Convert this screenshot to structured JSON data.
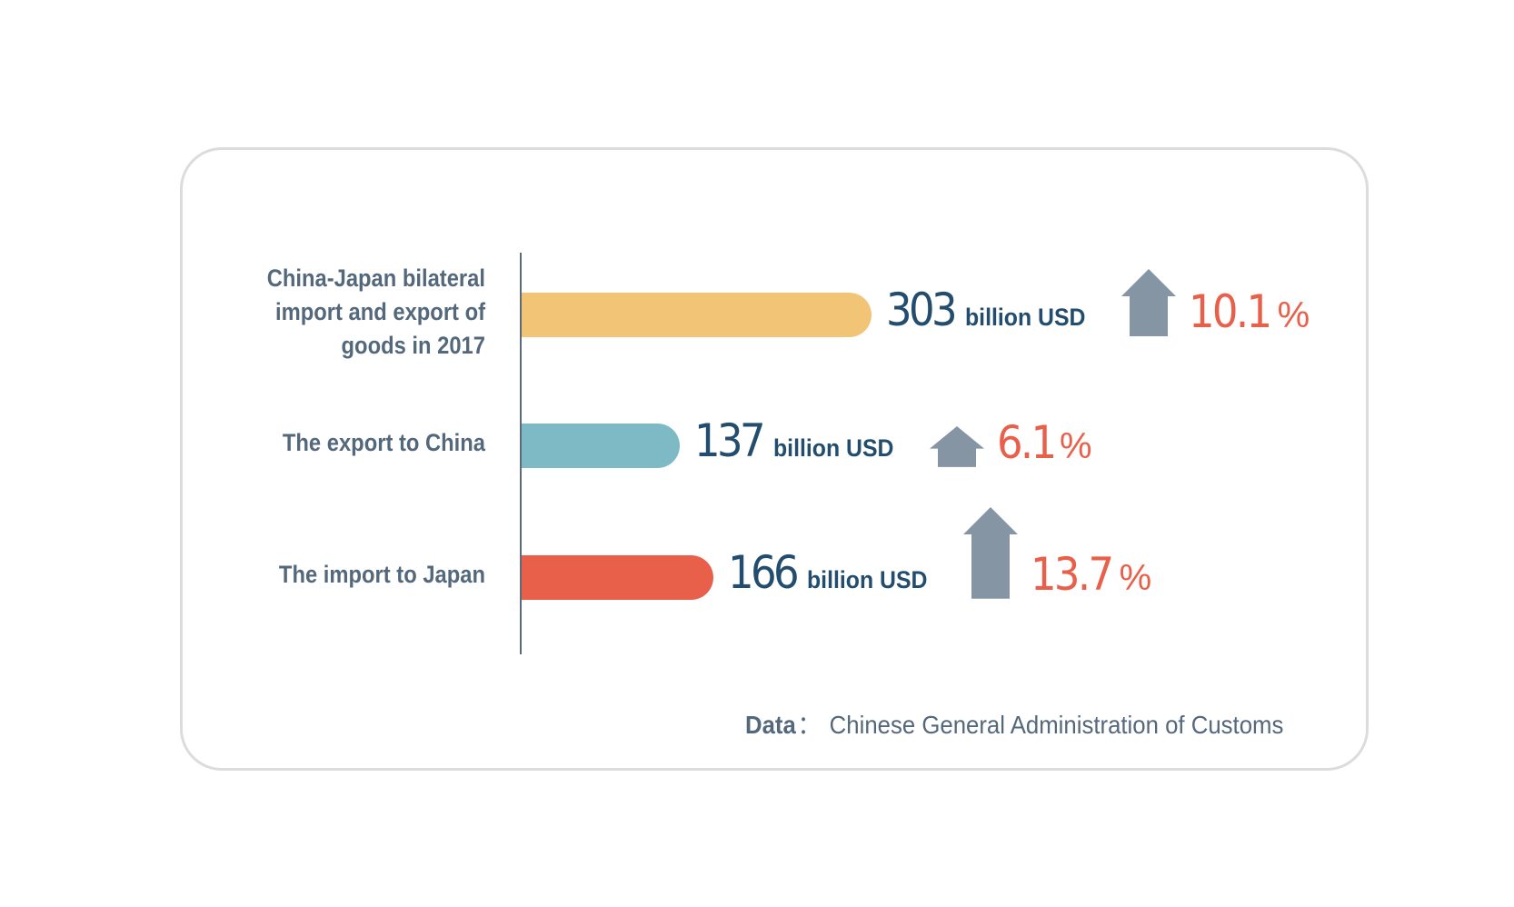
{
  "chart_data": {
    "type": "bar",
    "orientation": "horizontal",
    "categories": [
      "China-Japan bilateral import and export of goods in 2017",
      "The export to China",
      "The import to Japan"
    ],
    "label_lines": [
      [
        "China-Japan bilateral",
        "import and export of",
        "goods in 2017"
      ],
      [
        "The export to China"
      ],
      [
        "The import to Japan"
      ]
    ],
    "values": [
      303,
      137,
      166
    ],
    "value_labels": [
      "303",
      "137",
      "166"
    ],
    "unit": "billion USD",
    "growth": [
      10.1,
      6.1,
      13.7
    ],
    "growth_labels": [
      "10.1",
      "6.1",
      "13.7"
    ],
    "growth_unit": "%",
    "colors": [
      "#f2c476",
      "#7ebac6",
      "#e8604a"
    ],
    "arrow_color": "#8595a4",
    "value_color": "#234d6e",
    "growth_color": "#e8604a",
    "grid": false
  },
  "source": {
    "key": "Data",
    "separator": "：",
    "text": "Chinese General Administration of Customs"
  }
}
